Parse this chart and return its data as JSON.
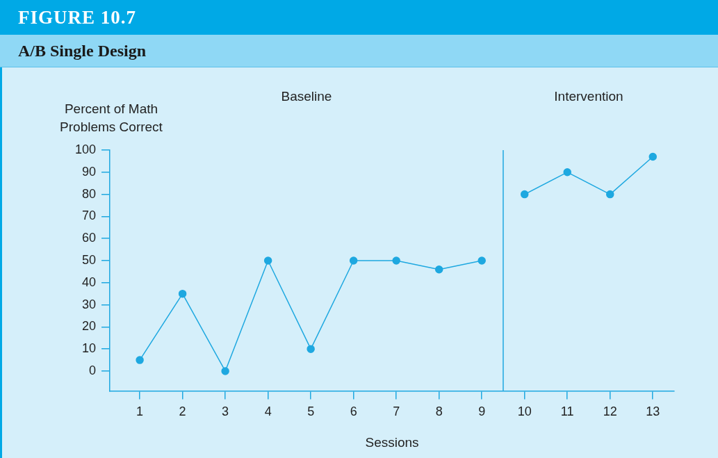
{
  "chart_data": {
    "type": "line",
    "title": "FIGURE 10.7",
    "subtitle": "A/B Single Design",
    "xlabel": "Sessions",
    "ylabel": "Percent of Math Problems Correct",
    "annotations": [
      "Baseline",
      "Intervention"
    ],
    "series": [
      {
        "x": [
          1,
          2,
          3,
          4,
          5,
          6,
          7,
          8,
          9
        ],
        "values": [
          5,
          35,
          0,
          50,
          10,
          50,
          50,
          46,
          50
        ],
        "color": "#1ea8e0"
      },
      {
        "x": [
          10,
          11,
          12,
          13
        ],
        "values": [
          80,
          90,
          80,
          97
        ],
        "color": "#1ea8e0"
      }
    ],
    "ref_lines": [
      {
        "axis": "x",
        "value": 9.5,
        "color": "#1ea8e0"
      }
    ],
    "xlim": [
      0.3,
      13.5
    ],
    "xticks": [
      1,
      2,
      3,
      4,
      5,
      6,
      7,
      8,
      9,
      10,
      11,
      12,
      13
    ],
    "ylim": [
      -9,
      100
    ],
    "yticks": [
      0,
      10,
      20,
      30,
      40,
      50,
      60,
      70,
      80,
      90,
      100
    ],
    "grid": false,
    "legend": false,
    "marker": "circle",
    "line_style": "solid"
  }
}
